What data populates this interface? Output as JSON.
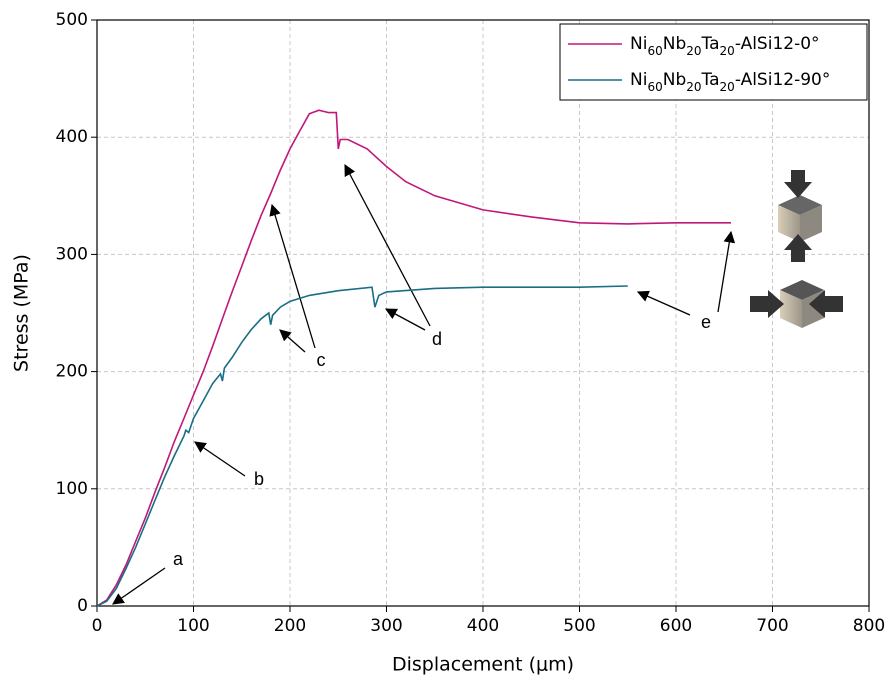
{
  "chart_data": {
    "type": "line",
    "x_label": "Displacement (μm)",
    "y_label": "Stress (MPa)",
    "xlim": [
      0,
      800
    ],
    "xticks": [
      0,
      100,
      200,
      300,
      400,
      500,
      600,
      700,
      800
    ],
    "ylim": [
      0,
      500
    ],
    "yticks": [
      0,
      100,
      200,
      300,
      400,
      500
    ],
    "grid": true,
    "legend": "upper right",
    "series": [
      {
        "name": "Ni60Nb20Ta20-AlSi12-0°",
        "color": "#c0187a",
        "x": [
          0,
          10,
          20,
          30,
          40,
          50,
          60,
          70,
          80,
          90,
          100,
          110,
          120,
          130,
          140,
          150,
          160,
          170,
          180,
          190,
          200,
          210,
          220,
          230,
          240,
          248,
          250,
          252,
          260,
          280,
          300,
          320,
          350,
          400,
          450,
          500,
          550,
          600,
          650,
          657
        ],
        "values": [
          0,
          5,
          18,
          35,
          55,
          75,
          97,
          118,
          140,
          160,
          180,
          200,
          222,
          245,
          268,
          290,
          312,
          333,
          352,
          372,
          390,
          405,
          420,
          423,
          421,
          421,
          390,
          398,
          398,
          390,
          375,
          362,
          350,
          338,
          332,
          327,
          326,
          327,
          327,
          327
        ]
      },
      {
        "name": "Ni60Nb20Ta20-AlSi12-90°",
        "color": "#1a6e85",
        "x": [
          0,
          10,
          20,
          30,
          40,
          50,
          60,
          70,
          80,
          90,
          92,
          95,
          100,
          110,
          120,
          128,
          130,
          132,
          140,
          150,
          160,
          170,
          178,
          180,
          182,
          190,
          200,
          220,
          250,
          285,
          288,
          292,
          300,
          350,
          400,
          450,
          500,
          550
        ],
        "values": [
          0,
          4,
          15,
          32,
          50,
          70,
          90,
          110,
          128,
          145,
          150,
          148,
          160,
          175,
          190,
          198,
          192,
          203,
          212,
          225,
          236,
          245,
          250,
          240,
          248,
          255,
          260,
          265,
          269,
          272,
          255,
          265,
          268,
          271,
          272,
          272,
          272,
          273
        ]
      }
    ],
    "annotations": [
      "a",
      "b",
      "c",
      "d",
      "e"
    ]
  }
}
